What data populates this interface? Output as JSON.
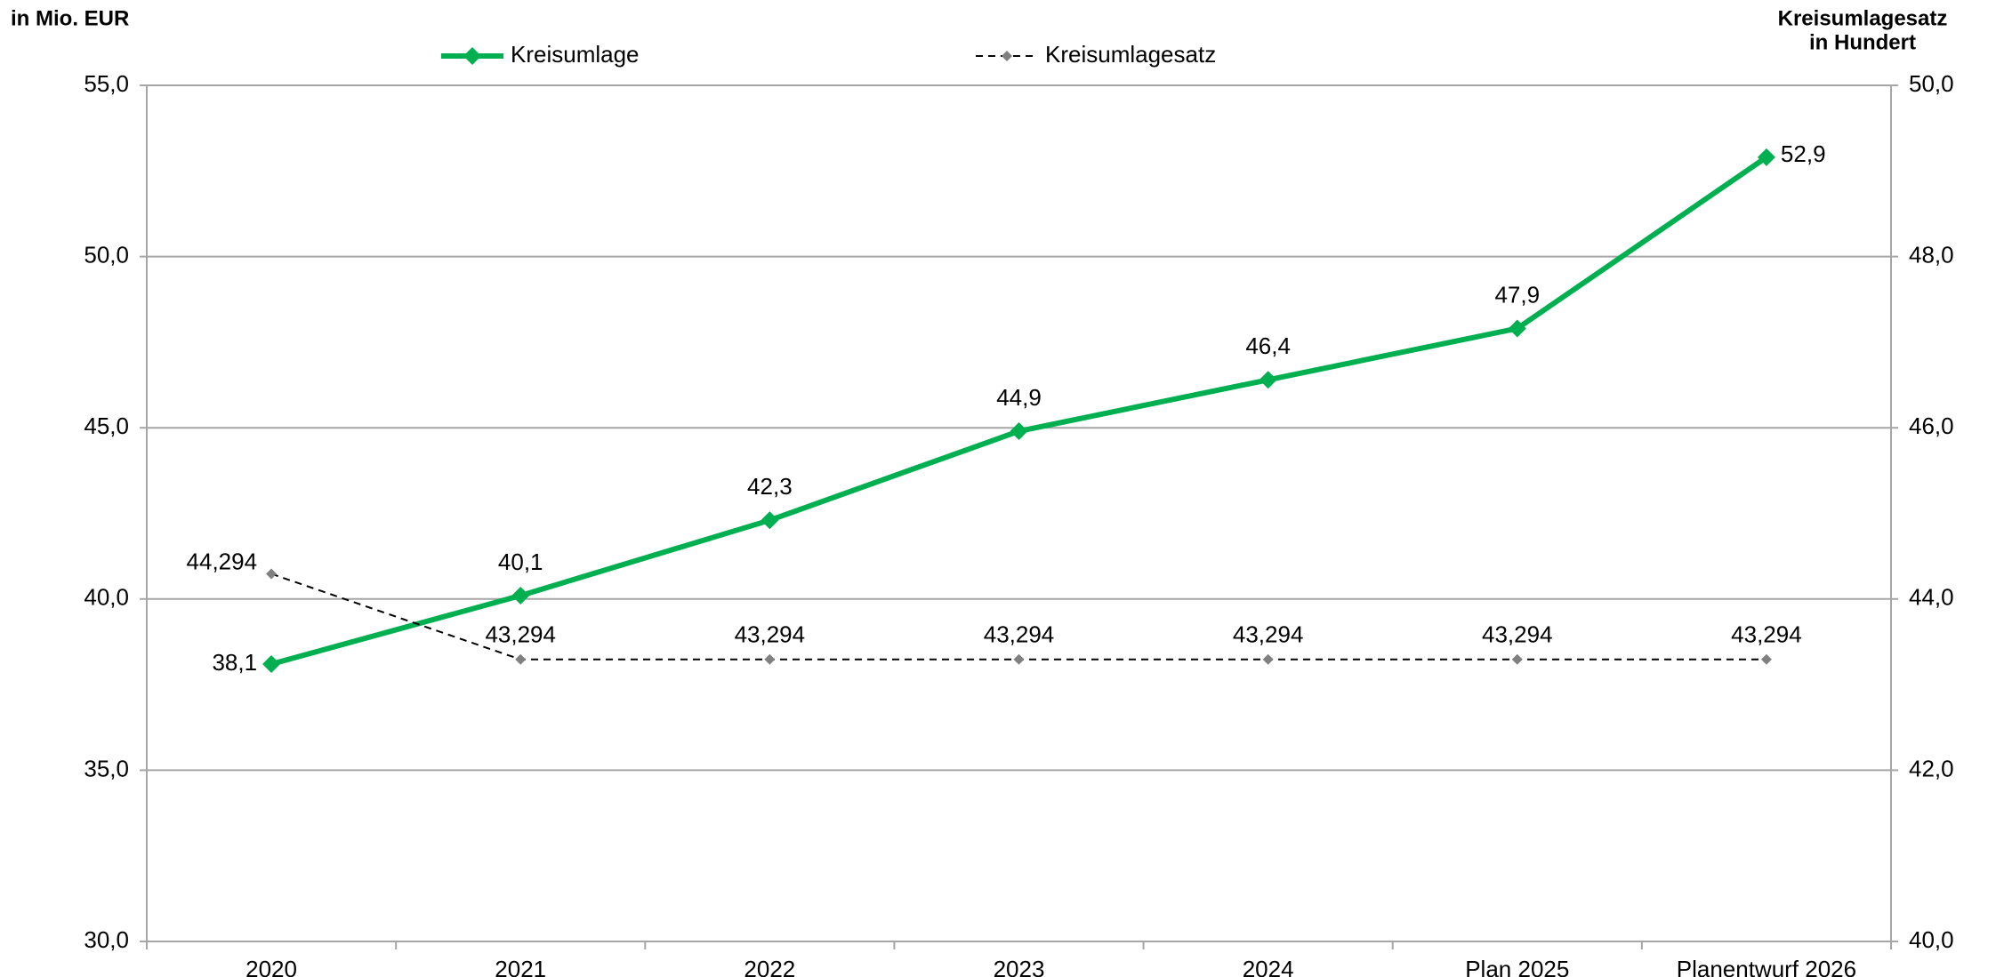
{
  "chart_data": {
    "type": "line",
    "ylabel": "in Mio. EUR",
    "y2label": [
      "Kreisumlagesatz",
      "in Hundert"
    ],
    "categories": [
      "2020",
      "2021",
      "2022",
      "2023",
      "2024",
      "Plan 2025",
      "Planentwurf 2026"
    ],
    "series": [
      {
        "name": "Kreisumlage",
        "color": "#00b050",
        "values": [
          38.1,
          40.1,
          42.3,
          44.9,
          46.4,
          47.9,
          52.9
        ],
        "value_labels": [
          "38,1",
          "40,1",
          "42,3",
          "44,9",
          "46,4",
          "47,9",
          "52,9"
        ]
      },
      {
        "name": "Kreisumlagesatz",
        "color": "#808080",
        "axis": "y2",
        "dashed": true,
        "values": [
          44.294,
          43.294,
          43.294,
          43.294,
          43.294,
          43.294,
          43.294
        ],
        "value_labels": [
          "44,294",
          "43,294",
          "43,294",
          "43,294",
          "43,294",
          "43,294",
          "43,294"
        ]
      }
    ],
    "ylim": [
      30,
      55
    ],
    "yticks": [
      {
        "value": 30,
        "label": "30,0"
      },
      {
        "value": 35,
        "label": "35,0"
      },
      {
        "value": 40,
        "label": "40,0"
      },
      {
        "value": 45,
        "label": "45,0"
      },
      {
        "value": 50,
        "label": "50,0"
      },
      {
        "value": 55,
        "label": "55,0"
      }
    ],
    "y2lim": [
      40,
      50
    ],
    "y2ticks": [
      {
        "value": 40,
        "label": "40,0"
      },
      {
        "value": 42,
        "label": "42,0"
      },
      {
        "value": 44,
        "label": "44,0"
      },
      {
        "value": 46,
        "label": "46,0"
      },
      {
        "value": 48,
        "label": "48,0"
      },
      {
        "value": 50,
        "label": "50,0"
      }
    ],
    "grid": true
  }
}
